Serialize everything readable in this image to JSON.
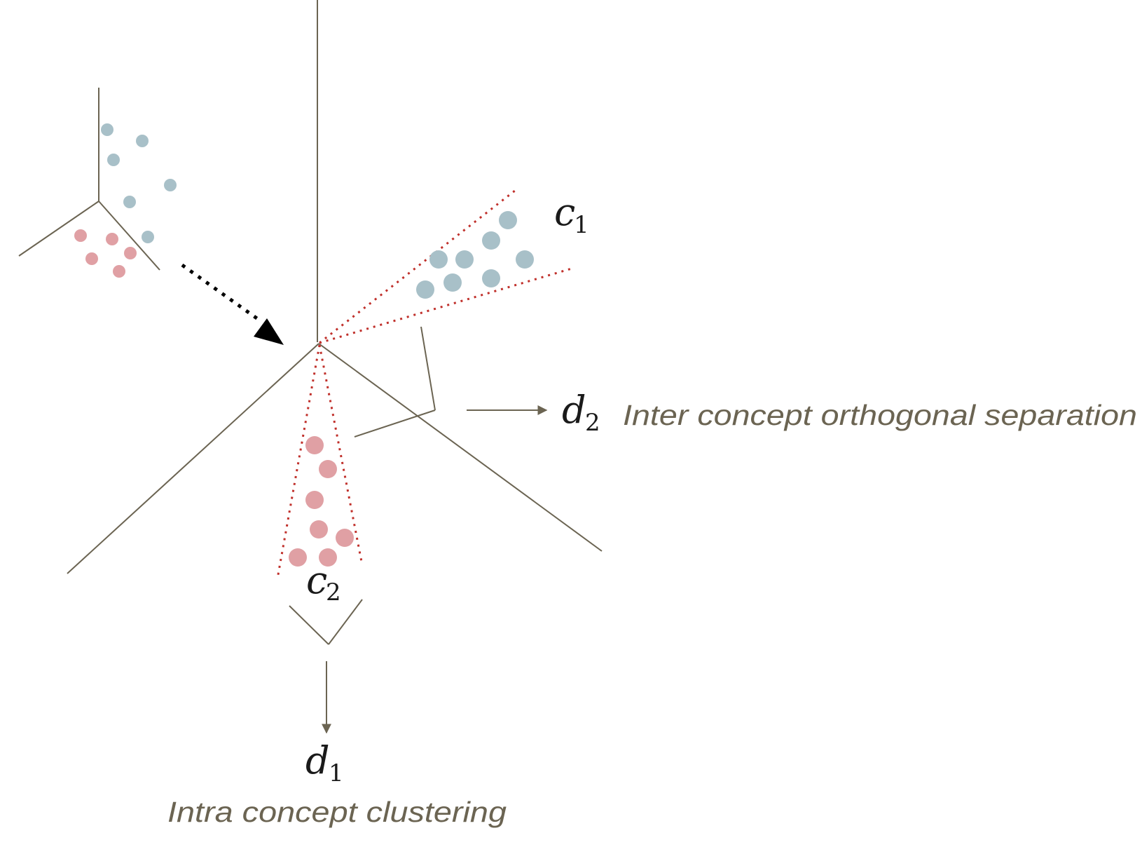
{
  "labels": {
    "c1": {
      "base": "c",
      "sub": "1"
    },
    "c2": {
      "base": "c",
      "sub": "2"
    },
    "d1": {
      "base": "d",
      "sub": "1"
    },
    "d2": {
      "base": "d",
      "sub": "2"
    }
  },
  "captions": {
    "inter": "Inter concept orthogonal separation",
    "intra": "Intra concept clustering"
  },
  "colors": {
    "axis": "#6b6452",
    "blue_point": "#a8c0c8",
    "red_point": "#e0a0a4",
    "cone_boundary": "#c0302b",
    "mapping_arrow": "#000000",
    "caption": "#6b6452"
  }
}
